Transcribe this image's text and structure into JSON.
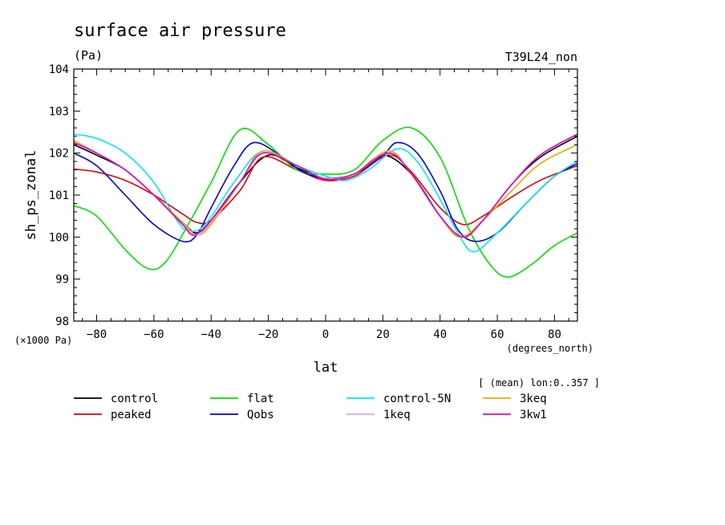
{
  "title": "surface air pressure",
  "units": "(Pa)",
  "experiment": "T39L24_non",
  "axis_note": "(×1000 Pa)",
  "x_units": "(degrees_north)",
  "mean_note": "[ (mean) lon:0..357 ]",
  "chart_data": {
    "type": "line",
    "title": "surface air pressure",
    "xlabel": "lat",
    "ylabel": "sh_ps_zonal",
    "xlim": [
      -88,
      88
    ],
    "ylim": [
      98,
      104
    ],
    "x_ticks": [
      -80,
      -60,
      -40,
      -20,
      0,
      20,
      40,
      60,
      80
    ],
    "x_tick_labels": [
      "−80",
      "−60",
      "−40",
      "−20",
      "0",
      "20",
      "40",
      "60",
      "80"
    ],
    "y_ticks": [
      98,
      99,
      100,
      101,
      102,
      103,
      104
    ],
    "y_tick_labels": [
      "98",
      "99",
      "100",
      "101",
      "102",
      "103",
      "104"
    ],
    "legend_position": "below",
    "series": [
      {
        "name": "control",
        "color": "#000000",
        "points": [
          [
            -88,
            102.2
          ],
          [
            -80,
            101.95
          ],
          [
            -70,
            101.6
          ],
          [
            -60,
            101.0
          ],
          [
            -50,
            100.35
          ],
          [
            -45,
            100.1
          ],
          [
            -40,
            100.4
          ],
          [
            -30,
            101.3
          ],
          [
            -20,
            101.95
          ],
          [
            -10,
            101.65
          ],
          [
            0,
            101.4
          ],
          [
            10,
            101.5
          ],
          [
            20,
            101.95
          ],
          [
            30,
            101.5
          ],
          [
            40,
            100.5
          ],
          [
            47,
            100.0
          ],
          [
            55,
            100.4
          ],
          [
            65,
            101.25
          ],
          [
            75,
            101.9
          ],
          [
            88,
            102.4
          ]
        ]
      },
      {
        "name": "peaked",
        "color": "#e00000",
        "points": [
          [
            -88,
            101.62
          ],
          [
            -80,
            101.55
          ],
          [
            -70,
            101.35
          ],
          [
            -60,
            101.0
          ],
          [
            -50,
            100.55
          ],
          [
            -45,
            100.35
          ],
          [
            -40,
            100.4
          ],
          [
            -30,
            101.1
          ],
          [
            -22,
            101.9
          ],
          [
            -10,
            101.6
          ],
          [
            0,
            101.35
          ],
          [
            10,
            101.45
          ],
          [
            22,
            101.95
          ],
          [
            30,
            101.55
          ],
          [
            40,
            100.7
          ],
          [
            48,
            100.3
          ],
          [
            55,
            100.5
          ],
          [
            65,
            100.95
          ],
          [
            75,
            101.35
          ],
          [
            88,
            101.7
          ]
        ]
      },
      {
        "name": "flat",
        "color": "#00e000",
        "points": [
          [
            -88,
            100.75
          ],
          [
            -80,
            100.5
          ],
          [
            -70,
            99.7
          ],
          [
            -62,
            99.25
          ],
          [
            -56,
            99.4
          ],
          [
            -48,
            100.3
          ],
          [
            -40,
            101.3
          ],
          [
            -30,
            102.55
          ],
          [
            -20,
            102.2
          ],
          [
            -10,
            101.6
          ],
          [
            0,
            101.5
          ],
          [
            10,
            101.6
          ],
          [
            20,
            102.3
          ],
          [
            30,
            102.6
          ],
          [
            40,
            101.9
          ],
          [
            50,
            100.2
          ],
          [
            58,
            99.3
          ],
          [
            64,
            99.05
          ],
          [
            72,
            99.35
          ],
          [
            80,
            99.8
          ],
          [
            88,
            100.1
          ]
        ]
      },
      {
        "name": "Qobs",
        "color": "#0000e0",
        "points": [
          [
            -88,
            102.0
          ],
          [
            -80,
            101.7
          ],
          [
            -70,
            101.0
          ],
          [
            -60,
            100.3
          ],
          [
            -50,
            99.9
          ],
          [
            -45,
            100.05
          ],
          [
            -40,
            100.7
          ],
          [
            -32,
            101.7
          ],
          [
            -25,
            102.25
          ],
          [
            -15,
            101.9
          ],
          [
            -8,
            101.55
          ],
          [
            0,
            101.4
          ],
          [
            10,
            101.5
          ],
          [
            20,
            101.95
          ],
          [
            25,
            102.25
          ],
          [
            32,
            102.0
          ],
          [
            40,
            101.1
          ],
          [
            46,
            100.2
          ],
          [
            52,
            99.9
          ],
          [
            60,
            100.1
          ],
          [
            70,
            100.8
          ],
          [
            80,
            101.45
          ],
          [
            88,
            101.75
          ]
        ]
      },
      {
        "name": "control-5N",
        "color": "#00e8f0",
        "points": [
          [
            -88,
            102.45
          ],
          [
            -80,
            102.35
          ],
          [
            -70,
            102.0
          ],
          [
            -60,
            101.3
          ],
          [
            -52,
            100.4
          ],
          [
            -48,
            100.15
          ],
          [
            -42,
            100.3
          ],
          [
            -32,
            101.3
          ],
          [
            -22,
            102.05
          ],
          [
            -10,
            101.7
          ],
          [
            0,
            101.45
          ],
          [
            7,
            101.35
          ],
          [
            15,
            101.6
          ],
          [
            25,
            102.1
          ],
          [
            32,
            101.8
          ],
          [
            40,
            100.9
          ],
          [
            47,
            100.0
          ],
          [
            52,
            99.65
          ],
          [
            60,
            100.1
          ],
          [
            70,
            100.8
          ],
          [
            80,
            101.45
          ],
          [
            88,
            101.8
          ]
        ]
      },
      {
        "name": "3keq",
        "color": "#f0a800",
        "points": [
          [
            -88,
            102.3
          ],
          [
            -80,
            102.0
          ],
          [
            -70,
            101.6
          ],
          [
            -60,
            101.0
          ],
          [
            -50,
            100.35
          ],
          [
            -45,
            100.05
          ],
          [
            -40,
            100.3
          ],
          [
            -30,
            101.3
          ],
          [
            -22,
            102.05
          ],
          [
            -10,
            101.7
          ],
          [
            0,
            101.4
          ],
          [
            10,
            101.5
          ],
          [
            22,
            102.05
          ],
          [
            30,
            101.5
          ],
          [
            40,
            100.5
          ],
          [
            47,
            100.0
          ],
          [
            55,
            100.4
          ],
          [
            65,
            101.1
          ],
          [
            75,
            101.75
          ],
          [
            88,
            102.2
          ]
        ]
      },
      {
        "name": "1keq",
        "color": "#f0a0e0",
        "points": [
          [
            -88,
            102.25
          ],
          [
            -80,
            102.0
          ],
          [
            -70,
            101.6
          ],
          [
            -60,
            101.0
          ],
          [
            -50,
            100.3
          ],
          [
            -45,
            100.05
          ],
          [
            -40,
            100.35
          ],
          [
            -30,
            101.3
          ],
          [
            -22,
            102.0
          ],
          [
            -10,
            101.7
          ],
          [
            0,
            101.4
          ],
          [
            10,
            101.5
          ],
          [
            22,
            102.0
          ],
          [
            30,
            101.5
          ],
          [
            40,
            100.5
          ],
          [
            48,
            100.0
          ],
          [
            55,
            100.4
          ],
          [
            65,
            101.25
          ],
          [
            75,
            101.95
          ],
          [
            88,
            102.45
          ]
        ]
      },
      {
        "name": "3kw1",
        "color": "#e000c0",
        "points": [
          [
            -88,
            102.25
          ],
          [
            -80,
            102.0
          ],
          [
            -70,
            101.6
          ],
          [
            -60,
            101.0
          ],
          [
            -50,
            100.3
          ],
          [
            -46,
            100.05
          ],
          [
            -40,
            100.4
          ],
          [
            -30,
            101.3
          ],
          [
            -22,
            102.0
          ],
          [
            -10,
            101.7
          ],
          [
            0,
            101.38
          ],
          [
            10,
            101.5
          ],
          [
            22,
            102.0
          ],
          [
            30,
            101.5
          ],
          [
            40,
            100.5
          ],
          [
            48,
            100.0
          ],
          [
            55,
            100.4
          ],
          [
            65,
            101.25
          ],
          [
            75,
            101.95
          ],
          [
            88,
            102.45
          ]
        ]
      }
    ]
  }
}
